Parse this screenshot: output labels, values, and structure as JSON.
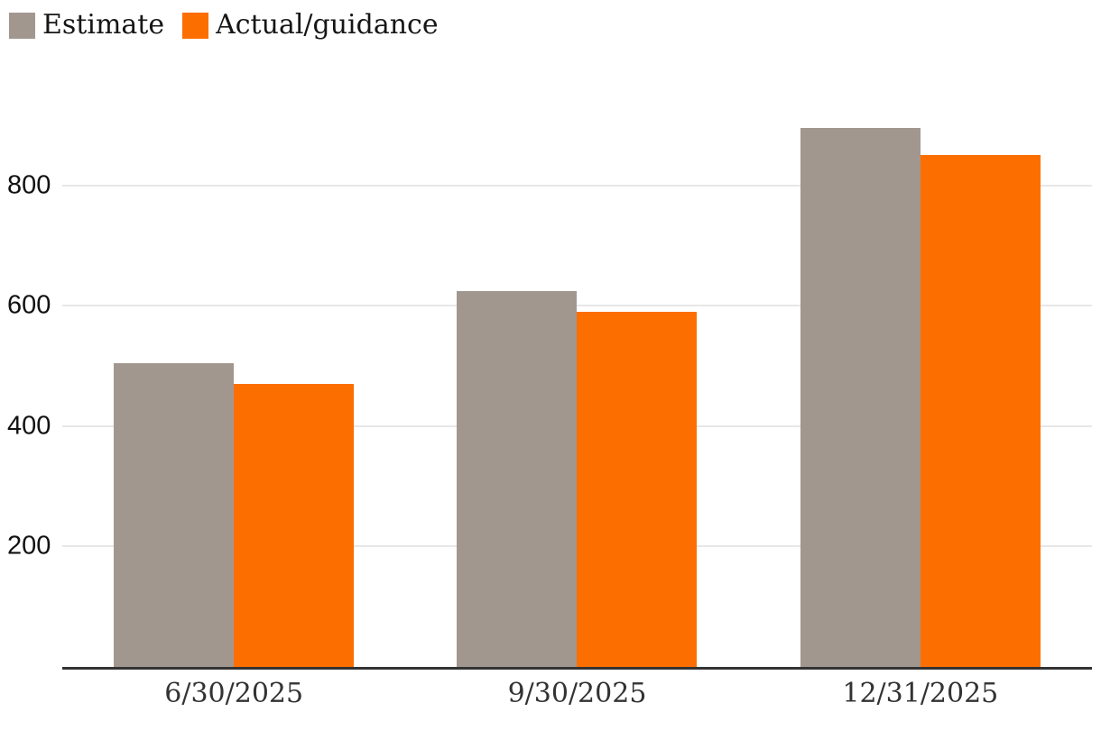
{
  "chart_data": {
    "type": "bar",
    "title": "",
    "categories": [
      "6/30/2025",
      "9/30/2025",
      "12/31/2025"
    ],
    "series": [
      {
        "name": "Estimate",
        "color": "#A2978F",
        "values": [
          505,
          625,
          895
        ]
      },
      {
        "name": "Actual/guidance",
        "color": "#FD6E00",
        "values": [
          470,
          590,
          850
        ]
      }
    ],
    "xlabel": "",
    "ylabel": "",
    "ylim": [
      0,
      960
    ],
    "yticks": [
      200,
      400,
      600,
      800
    ],
    "grid": true,
    "legend_position": "top-left",
    "colors": {
      "axis_line": "#333333",
      "gridline": "#e7e7e7",
      "y_tick_label": "#111111",
      "x_tick_label": "#333333",
      "background": "#ffffff"
    }
  }
}
